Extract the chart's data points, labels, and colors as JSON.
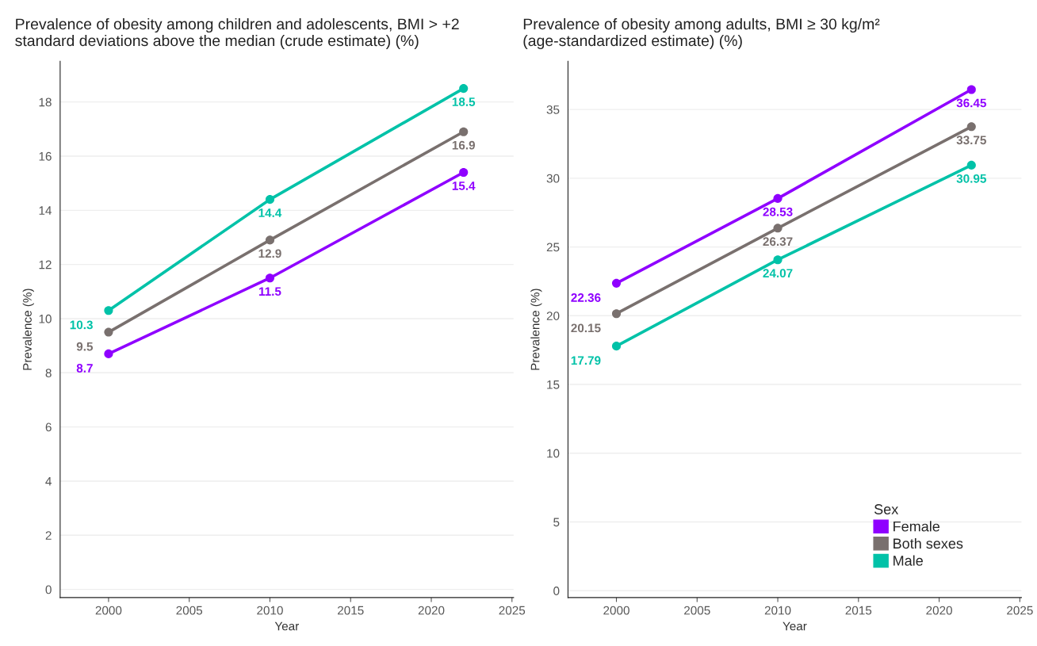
{
  "chart_data": [
    {
      "type": "line",
      "title": "Prevalence of obesity among children and adolescents, BMI > +2\nstandard deviations above the median (crude estimate) (%)",
      "xlabel": "Year",
      "ylabel": "Prevalence (%)",
      "x": [
        2000,
        2010,
        2022
      ],
      "series": [
        {
          "color": "#8f00ff",
          "values": [
            8.7,
            11.5,
            15.4
          ]
        },
        {
          "color": "#79706e",
          "values": [
            9.5,
            12.9,
            16.9
          ]
        },
        {
          "color": "#00c2a8",
          "values": [
            10.3,
            14.4,
            18.5
          ]
        }
      ],
      "xlim": [
        1997,
        2025.1
      ],
      "xticks": [
        2000,
        2005,
        2010,
        2015,
        2020,
        2025
      ],
      "ylim": [
        -0.3,
        19.5
      ],
      "yticks": [
        0,
        2,
        4,
        6,
        8,
        10,
        12,
        14,
        16,
        18
      ],
      "data_labels": true,
      "grid": "y",
      "legend": false,
      "marker": "circle",
      "line_style": "solid"
    },
    {
      "type": "line",
      "title": "Prevalence of obesity among adults, BMI ≥ 30 kg/m²\n(age-standardized estimate) (%)",
      "xlabel": "Year",
      "ylabel": "Prevalence (%)",
      "legend_title": "Sex",
      "x": [
        2000,
        2010,
        2022
      ],
      "series": [
        {
          "name": "Female",
          "color": "#8f00ff",
          "values": [
            22.36,
            28.53,
            36.45
          ]
        },
        {
          "name": "Both sexes",
          "color": "#79706e",
          "values": [
            20.15,
            26.37,
            33.75
          ]
        },
        {
          "name": "Male",
          "color": "#00c2a8",
          "values": [
            17.79,
            24.07,
            30.95
          ]
        }
      ],
      "xlim": [
        1997,
        2025.1
      ],
      "xticks": [
        2000,
        2005,
        2010,
        2015,
        2020,
        2025
      ],
      "ylim": [
        -0.5,
        38.5
      ],
      "yticks": [
        0,
        5,
        10,
        15,
        20,
        25,
        30,
        35
      ],
      "data_labels": true,
      "grid": "y",
      "legend": "bottom right",
      "marker": "circle",
      "line_style": "solid"
    }
  ]
}
